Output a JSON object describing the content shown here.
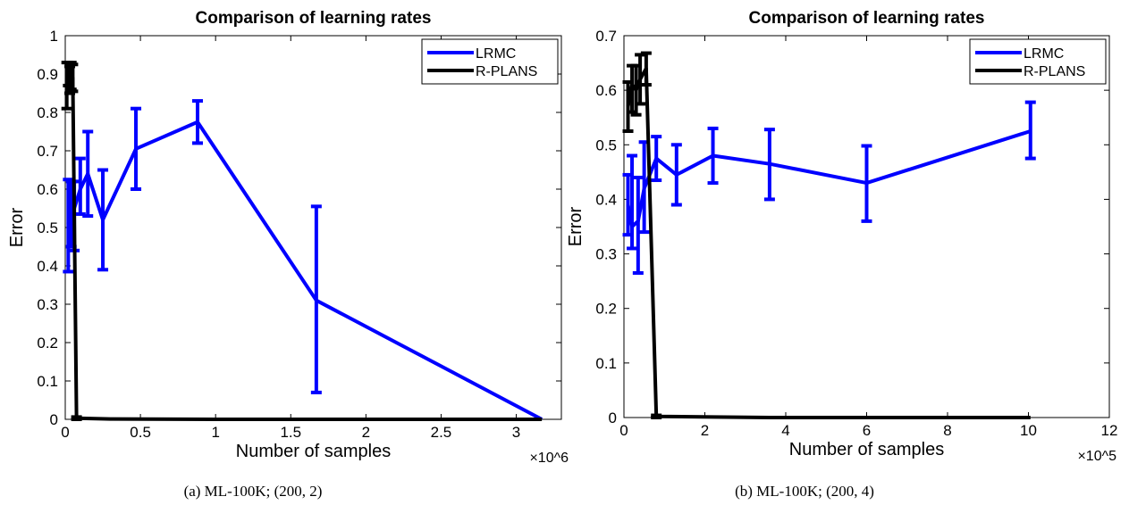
{
  "figure": {
    "charts": [
      {
        "caption": "(a) ML-100K; (200, 2)"
      },
      {
        "caption": "(b) ML-100K; (200, 4)"
      }
    ]
  },
  "chart_data": [
    {
      "type": "line",
      "title": "Comparison of learning rates",
      "xlabel": "Number of samples",
      "ylabel": "Error",
      "x_exponent": "×10^6",
      "xlim": [
        0,
        3.3
      ],
      "ylim": [
        0,
        1
      ],
      "xticks": [
        0,
        0.5,
        1,
        1.5,
        2,
        2.5,
        3
      ],
      "xtick_labels": [
        "0",
        "0.5",
        "1",
        "1.5",
        "2",
        "2.5",
        "3"
      ],
      "yticks": [
        0,
        0.1,
        0.2,
        0.3,
        0.4,
        0.5,
        0.6,
        0.7,
        0.8,
        0.9,
        1
      ],
      "ytick_labels": [
        "0",
        "0.1",
        "0.2",
        "0.3",
        "0.4",
        "0.5",
        "0.6",
        "0.7",
        "0.8",
        "0.9",
        "1"
      ],
      "grid": false,
      "legend_position": "top-right",
      "series": [
        {
          "name": "LRMC",
          "color": "#0000ff",
          "x": [
            0.02,
            0.04,
            0.06,
            0.1,
            0.15,
            0.25,
            0.47,
            0.88,
            1.67,
            3.17
          ],
          "y": [
            0.51,
            0.58,
            0.55,
            0.6,
            0.64,
            0.52,
            0.705,
            0.775,
            0.31,
            0.0
          ],
          "err_low": [
            0.385,
            0.45,
            0.44,
            0.535,
            0.53,
            0.39,
            0.6,
            0.72,
            0.07,
            0.0
          ],
          "err_high": [
            0.625,
            0.62,
            0.62,
            0.68,
            0.75,
            0.65,
            0.81,
            0.83,
            0.555,
            0.0
          ]
        },
        {
          "name": "R-PLANS",
          "color": "#000000",
          "x": [
            0.01,
            0.02,
            0.03,
            0.04,
            0.05,
            0.075,
            0.3,
            1.0,
            1.67,
            3.17
          ],
          "y": [
            0.85,
            0.9,
            0.88,
            0.9,
            0.89,
            0.003,
            0.001,
            0.0,
            0.0,
            0.0
          ],
          "err_low": [
            0.81,
            0.87,
            0.85,
            0.86,
            0.855,
            0.0,
            0.0,
            0.0,
            0.0,
            0.0
          ],
          "err_high": [
            0.93,
            0.93,
            0.92,
            0.93,
            0.925,
            0.006,
            0.002,
            0.0,
            0.0,
            0.0
          ]
        }
      ]
    },
    {
      "type": "line",
      "title": "Comparison of learning rates",
      "xlabel": "Number of samples",
      "ylabel": "Error",
      "x_exponent": "×10^5",
      "xlim": [
        0,
        12
      ],
      "ylim": [
        0,
        0.7
      ],
      "xticks": [
        0,
        2,
        4,
        6,
        8,
        10,
        12
      ],
      "xtick_labels": [
        "0",
        "2",
        "4",
        "6",
        "8",
        "10",
        "12"
      ],
      "yticks": [
        0,
        0.1,
        0.2,
        0.3,
        0.4,
        0.5,
        0.6,
        0.7
      ],
      "ytick_labels": [
        "0",
        "0.1",
        "0.2",
        "0.3",
        "0.4",
        "0.5",
        "0.6",
        "0.7"
      ],
      "grid": false,
      "legend_position": "top-right",
      "series": [
        {
          "name": "LRMC",
          "color": "#0000ff",
          "x": [
            0.1,
            0.2,
            0.35,
            0.5,
            0.8,
            1.3,
            2.2,
            3.6,
            6.0,
            10.05
          ],
          "y": [
            0.39,
            0.35,
            0.36,
            0.42,
            0.475,
            0.445,
            0.48,
            0.465,
            0.43,
            0.525
          ],
          "err_low": [
            0.335,
            0.31,
            0.265,
            0.34,
            0.435,
            0.39,
            0.43,
            0.4,
            0.36,
            0.475
          ],
          "err_high": [
            0.445,
            0.48,
            0.44,
            0.505,
            0.515,
            0.5,
            0.53,
            0.528,
            0.498,
            0.578
          ]
        },
        {
          "name": "R-PLANS",
          "color": "#000000",
          "x": [
            0.1,
            0.2,
            0.3,
            0.4,
            0.55,
            0.8,
            2.2,
            3.6,
            6.0,
            10.05
          ],
          "y": [
            0.57,
            0.61,
            0.6,
            0.62,
            0.64,
            0.002,
            0.001,
            0.0,
            0.0,
            0.0
          ],
          "err_low": [
            0.525,
            0.56,
            0.555,
            0.575,
            0.61,
            0.0,
            0.0,
            0.0,
            0.0,
            0.0
          ],
          "err_high": [
            0.615,
            0.645,
            0.645,
            0.665,
            0.668,
            0.004,
            0.002,
            0.0,
            0.0,
            0.0
          ]
        }
      ]
    }
  ]
}
